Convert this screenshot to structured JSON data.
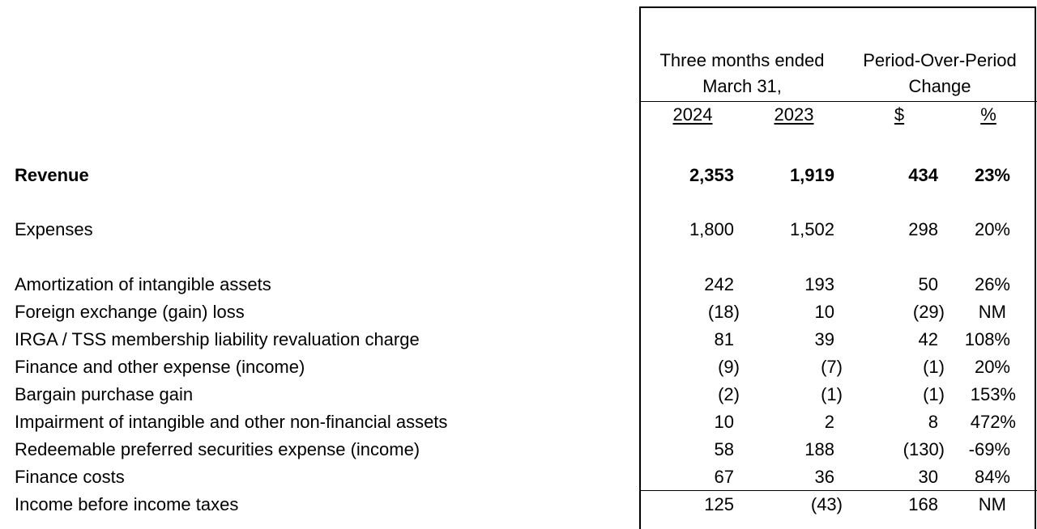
{
  "header": {
    "col_group_1_line1": "Three months ended",
    "col_group_1_line2": "March 31,",
    "col_group_2_line1": "Period-Over-Period",
    "col_group_2_line2": "Change",
    "col_2024": "2024",
    "col_2023": "2023",
    "col_dollar": "$",
    "col_pct": "%"
  },
  "rows": [
    {
      "label": "Revenue",
      "v2024": "2,353",
      "v2023": "1,919",
      "dollar": "434",
      "pct": "23%"
    },
    {
      "label": "Expenses",
      "v2024": "1,800",
      "v2023": "1,502",
      "dollar": "298",
      "pct": "20%"
    },
    {
      "label": "Amortization of intangible assets",
      "v2024": "242",
      "v2023": "193",
      "dollar": "50",
      "pct": "26%"
    },
    {
      "label": "Foreign exchange (gain) loss",
      "v2024": "(18)",
      "v2023": "10",
      "dollar": "(29)",
      "pct": "NM"
    },
    {
      "label": "IRGA / TSS membership liability revaluation charge",
      "v2024": "81",
      "v2023": "39",
      "dollar": "42",
      "pct": "108%"
    },
    {
      "label": "Finance and other expense (income)",
      "v2024": "(9)",
      "v2023": "(7)",
      "dollar": "(1)",
      "pct": "20%"
    },
    {
      "label": "Bargain purchase gain",
      "v2024": "(2)",
      "v2023": "(1)",
      "dollar": "(1)",
      "pct": "153%"
    },
    {
      "label": "Impairment of intangible and other non-financial assets",
      "v2024": "10",
      "v2023": "2",
      "dollar": "8",
      "pct": "472%"
    },
    {
      "label": "Redeemable preferred securities expense (income)",
      "v2024": "58",
      "v2023": "188",
      "dollar": "(130)",
      "pct": "-69%"
    },
    {
      "label": "Finance costs",
      "v2024": "67",
      "v2023": "36",
      "dollar": "30",
      "pct": "84%"
    },
    {
      "label": "Income before income taxes",
      "v2024": "125",
      "v2023": "(43)",
      "dollar": "168",
      "pct": "NM"
    }
  ]
}
